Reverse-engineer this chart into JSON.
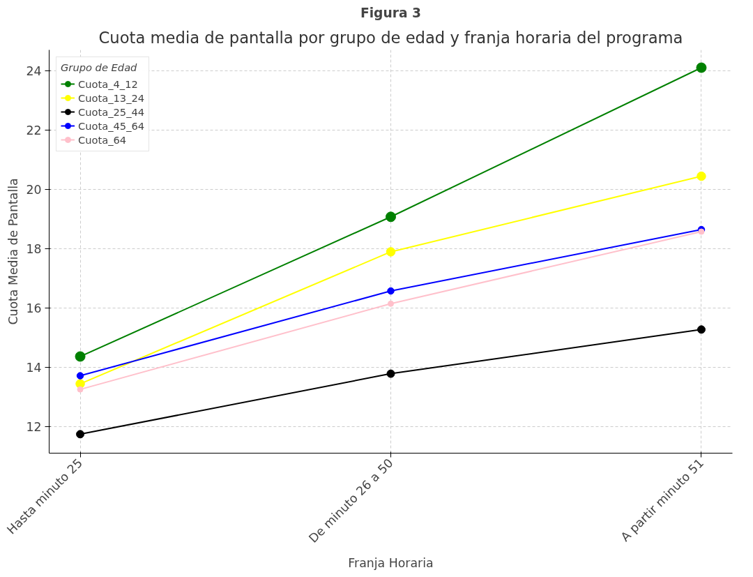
{
  "chart_data": {
    "type": "line",
    "title": "Figura 3",
    "subtitle": "Cuota media de pantalla por grupo de edad y franja horaria del programa",
    "xlabel": "Franja Horaria",
    "ylabel": "Cuota Media de Pantalla",
    "legend_title": "Grupo de Edad",
    "categories": [
      "Hasta minuto 25",
      "De minuto 26 a 50",
      "A partir minuto 51"
    ],
    "series": [
      {
        "name": "Cuota_4_12",
        "color": "#008000",
        "values": [
          14.36,
          19.07,
          24.1
        ]
      },
      {
        "name": "Cuota_13_24",
        "color": "#ffff00",
        "values": [
          13.44,
          17.89,
          20.44
        ]
      },
      {
        "name": "Cuota_25_44",
        "color": "#000000",
        "values": [
          11.74,
          13.78,
          15.27
        ]
      },
      {
        "name": "Cuota_45_64",
        "color": "#0000ff",
        "values": [
          13.71,
          16.57,
          18.64
        ]
      },
      {
        "name": "Cuota_64",
        "color": "#ffc0cb",
        "values": [
          13.25,
          16.14,
          18.57
        ]
      }
    ],
    "ylim": [
      11.1,
      24.7
    ],
    "yticks": [
      12,
      14,
      16,
      18,
      20,
      22,
      24
    ],
    "grid": true,
    "legend": "top left",
    "marker": "circle",
    "line_style": "solid"
  }
}
